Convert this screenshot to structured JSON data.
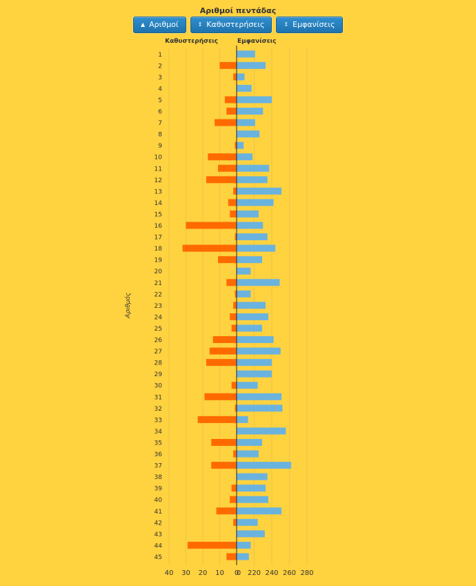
{
  "title": "Αριθμοί πεντάδας",
  "buttons": [
    {
      "label": "Αριθμοί",
      "icon": "sort-asc-icon",
      "glyph": "▲"
    },
    {
      "label": "Καθυστερήσεις",
      "icon": "sort-icon",
      "glyph": "↕"
    },
    {
      "label": "Εμφανίσεις",
      "icon": "sort-icon",
      "glyph": "↕"
    }
  ],
  "chart_data": {
    "type": "bar",
    "orientation": "horizontal-butterfly",
    "ylabel": "Αριθμός",
    "categories": [
      "1",
      "2",
      "3",
      "4",
      "5",
      "6",
      "7",
      "8",
      "9",
      "10",
      "11",
      "12",
      "13",
      "14",
      "15",
      "16",
      "17",
      "18",
      "19",
      "20",
      "21",
      "22",
      "23",
      "24",
      "25",
      "26",
      "27",
      "28",
      "29",
      "30",
      "31",
      "32",
      "33",
      "34",
      "35",
      "36",
      "37",
      "38",
      "39",
      "40",
      "41",
      "42",
      "43",
      "44",
      "45"
    ],
    "series": [
      {
        "name": "Καθυστερήσεις",
        "color": "#FF6A00",
        "side": "left",
        "ticks": [
          "40",
          "30",
          "20",
          "10",
          "0"
        ],
        "xlim": [
          0,
          40
        ],
        "values": [
          0,
          10,
          2,
          0,
          7,
          6,
          13,
          0,
          1,
          17,
          11,
          18,
          2,
          5,
          4,
          30,
          1,
          32,
          11,
          0,
          6,
          1,
          2,
          4,
          3,
          14,
          16,
          18,
          0,
          3,
          19,
          1,
          23,
          0,
          15,
          2,
          15,
          0,
          3,
          4,
          12,
          2,
          0,
          29,
          6
        ]
      },
      {
        "name": "Εμφανίσεις",
        "color": "#6BB3DF",
        "side": "right",
        "ticks": [
          "0",
          "220",
          "240",
          "260",
          "280"
        ],
        "xlim": [
          200,
          280
        ],
        "values": [
          221,
          233,
          209,
          217,
          240,
          230,
          221,
          226,
          208,
          218,
          237,
          235,
          251,
          242,
          225,
          230,
          235,
          244,
          229,
          216,
          249,
          216,
          233,
          236,
          229,
          242,
          250,
          240,
          240,
          224,
          251,
          252,
          213,
          256,
          229,
          225,
          262,
          235,
          233,
          236,
          251,
          224,
          232,
          216,
          214
        ]
      }
    ]
  }
}
